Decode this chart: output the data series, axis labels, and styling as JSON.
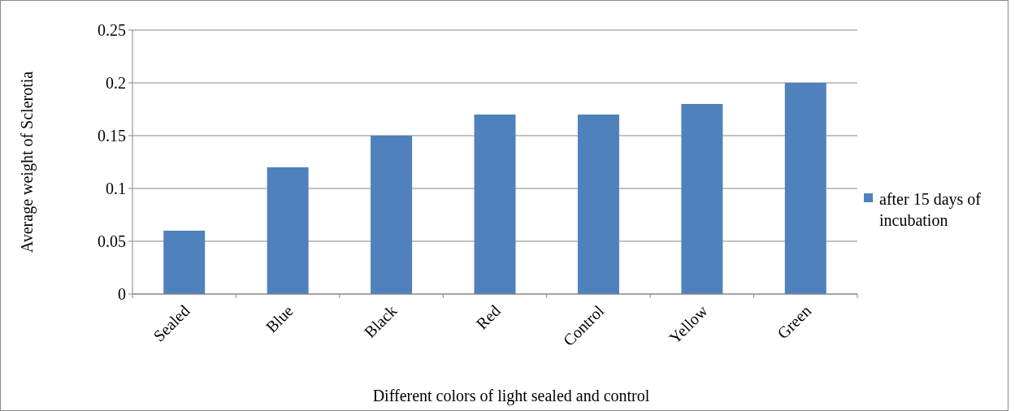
{
  "chart_data": {
    "type": "bar",
    "xlabel": "Different colors of light sealed and control",
    "ylabel": "Average weight of Sclerotia",
    "categories": [
      "Sealed",
      "Blue",
      "Black",
      "Red",
      "Control",
      "Yellow",
      "Green"
    ],
    "series": [
      {
        "name": "after 15 days of incubation",
        "color": "#4f81bd",
        "values": [
          0.06,
          0.12,
          0.15,
          0.17,
          0.17,
          0.18,
          0.2
        ]
      }
    ],
    "ylim": [
      0,
      0.25
    ],
    "yticks": [
      0,
      0.05,
      0.1,
      0.15,
      0.2,
      0.25
    ],
    "grid": "y",
    "legend": "right"
  }
}
